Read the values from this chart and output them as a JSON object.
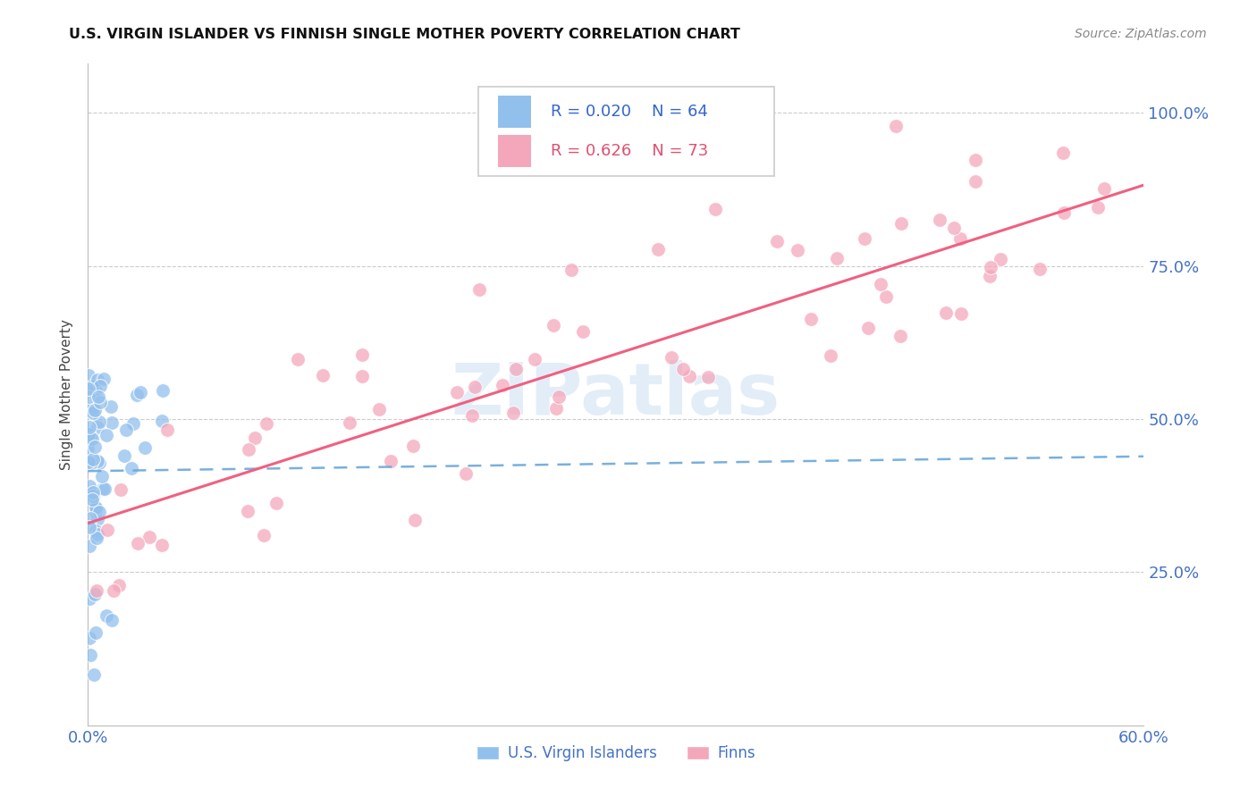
{
  "title": "U.S. VIRGIN ISLANDER VS FINNISH SINGLE MOTHER POVERTY CORRELATION CHART",
  "source": "Source: ZipAtlas.com",
  "ylabel": "Single Mother Poverty",
  "xlim": [
    0.0,
    0.6
  ],
  "ylim": [
    0.0,
    1.08
  ],
  "yticks": [
    0.25,
    0.5,
    0.75,
    1.0
  ],
  "ytick_labels": [
    "25.0%",
    "50.0%",
    "75.0%",
    "100.0%"
  ],
  "xticks": [
    0.0,
    0.1,
    0.2,
    0.3,
    0.4,
    0.5,
    0.6
  ],
  "xtick_labels": [
    "0.0%",
    "",
    "",
    "",
    "",
    "",
    "60.0%"
  ],
  "blue_R": "0.020",
  "blue_N": "64",
  "pink_R": "0.626",
  "pink_N": "73",
  "blue_color": "#92C0ED",
  "pink_color": "#F4A7BB",
  "blue_line_color": "#6AA8D8",
  "pink_line_color": "#F06080",
  "watermark": "ZIPatlas",
  "legend_blue_label": "U.S. Virgin Islanders",
  "legend_pink_label": "Finns",
  "blue_slope": 0.04,
  "blue_intercept": 0.415,
  "pink_slope": 0.92,
  "pink_intercept": 0.33
}
